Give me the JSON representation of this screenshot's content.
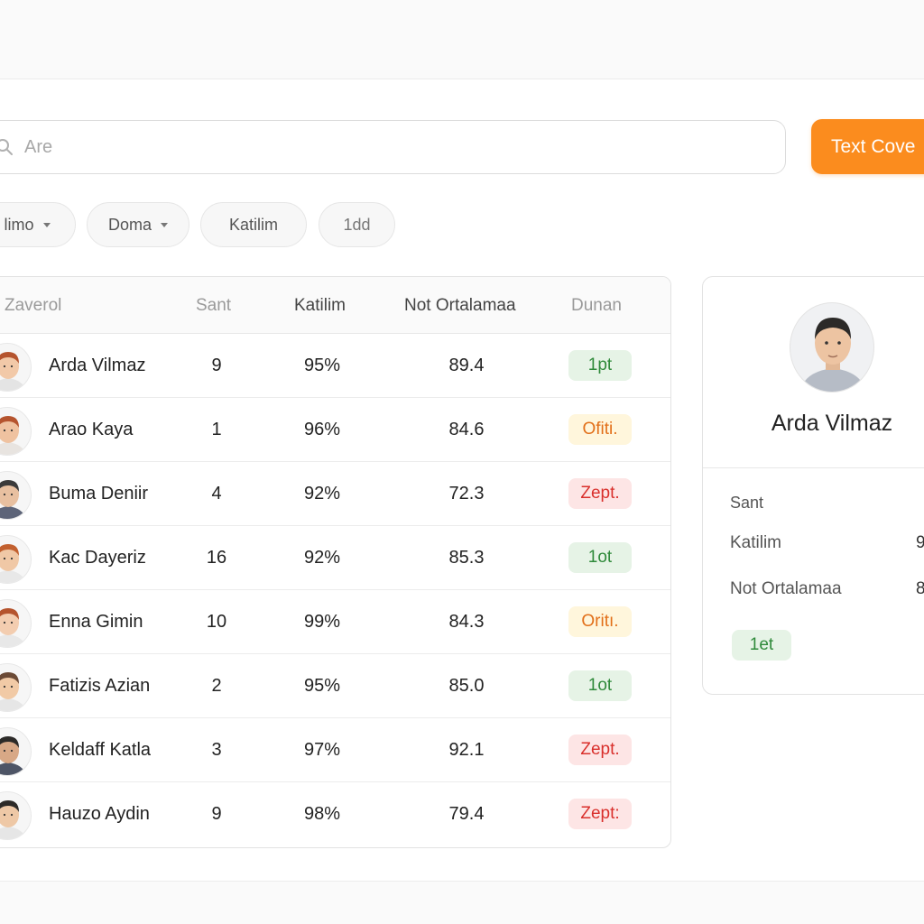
{
  "search": {
    "placeholder": "Are"
  },
  "cta_label": "Text Cove",
  "filters": [
    {
      "label": "limo",
      "has_caret": true
    },
    {
      "label": "Doma",
      "has_caret": true
    },
    {
      "label": "Katilim",
      "has_caret": false
    },
    {
      "label": "1dd",
      "has_caret": false
    }
  ],
  "table": {
    "columns": [
      "Zaverol",
      "Sant",
      "Katilim",
      "Not Ortalamaa",
      "Dunan"
    ],
    "rows": [
      {
        "name": "Arda Vilmaz",
        "sant": "9",
        "katilim": "95%",
        "not": "89.4",
        "status": "1pt",
        "status_color": "green"
      },
      {
        "name": "Arao Kaya",
        "sant": "1",
        "katilim": "96%",
        "not": "84.6",
        "status": "Ofiti.",
        "status_color": "yellow"
      },
      {
        "name": "Buma Deniir",
        "sant": "4",
        "katilim": "92%",
        "not": "72.3",
        "status": "Zept.",
        "status_color": "red"
      },
      {
        "name": "Kac Dayeriz",
        "sant": "16",
        "katilim": "92%",
        "not": "85.3",
        "status": "1ot",
        "status_color": "green"
      },
      {
        "name": "Enna Gimin",
        "sant": "10",
        "katilim": "99%",
        "not": "84.3",
        "status": "Oritı.",
        "status_color": "yellow"
      },
      {
        "name": "Fatizis Azian",
        "sant": "2",
        "katilim": "95%",
        "not": "85.0",
        "status": "1ot",
        "status_color": "green"
      },
      {
        "name": "Keldaff Katla",
        "sant": "3",
        "katilim": "97%",
        "not": "92.1",
        "status": "Zept.",
        "status_color": "red"
      },
      {
        "name": "Hauzo Aydin",
        "sant": "9",
        "katilim": "98%",
        "not": "79.4",
        "status": "Zept:",
        "status_color": "red"
      }
    ]
  },
  "profile": {
    "name": "Arda Vilmaz",
    "fields": [
      {
        "label": "Sant",
        "value": ""
      },
      {
        "label": "Katilim",
        "value": "9"
      },
      {
        "label": "Not Ortalamaa",
        "value": "8"
      }
    ],
    "badge": "1et"
  },
  "colors": {
    "accent": "#fb8c1e",
    "green_text": "#2f8a3a",
    "green_bg": "#e6f3e6",
    "yellow_text": "#e2701a",
    "yellow_bg": "#fff6dc",
    "red_text": "#d9302c",
    "red_bg": "#fde5e5"
  },
  "icons": {
    "search": "search-icon",
    "caret": "chevron-down-icon",
    "avatar": "avatar"
  }
}
